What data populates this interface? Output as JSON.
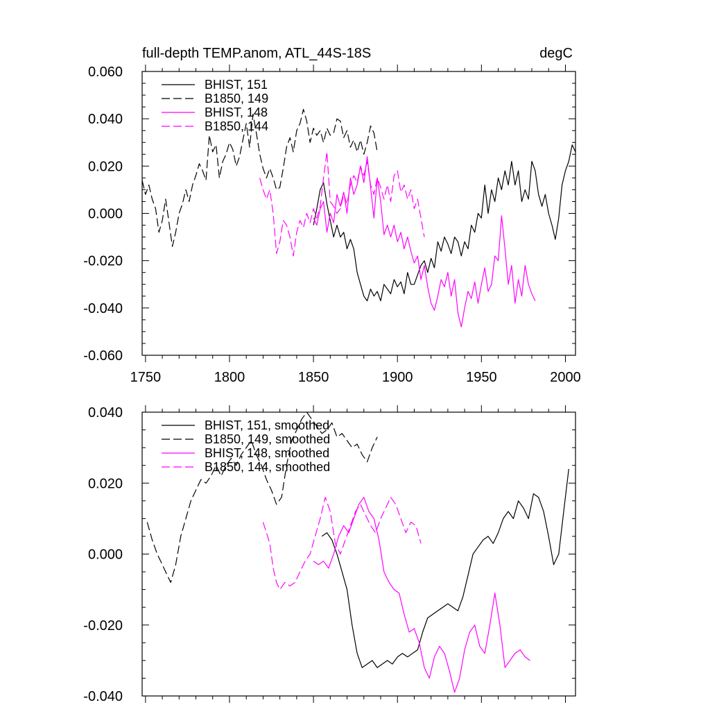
{
  "chart_data": [
    {
      "type": "line",
      "title": "full-depth TEMP.anom, ATL_44S-18S",
      "units": "degC",
      "xlim": [
        1748,
        2006
      ],
      "ylim": [
        -0.06,
        0.06
      ],
      "xticks": [
        1750,
        1800,
        1850,
        1900,
        1950,
        2000
      ],
      "yticks": [
        -0.06,
        -0.04,
        -0.02,
        0.0,
        0.02,
        0.04,
        0.06
      ],
      "xtick_labels": [
        "1750",
        "1800",
        "1850",
        "1900",
        "1950",
        "2000"
      ],
      "ytick_labels": [
        "-0.060",
        "-0.040",
        "-0.020",
        "0.000",
        "0.020",
        "0.040",
        "0.060"
      ],
      "legend_position": "top-left",
      "series": [
        {
          "name": "BHIST, 151",
          "color": "#000000",
          "dash": "solid",
          "x": [
            1850,
            1852,
            1854,
            1856,
            1858,
            1860,
            1862,
            1864,
            1866,
            1868,
            1870,
            1872,
            1874,
            1876,
            1878,
            1880,
            1882,
            1884,
            1886,
            1888,
            1890,
            1892,
            1894,
            1896,
            1898,
            1900,
            1902,
            1904,
            1906,
            1908,
            1910,
            1912,
            1914,
            1916,
            1918,
            1920,
            1922,
            1924,
            1926,
            1928,
            1930,
            1932,
            1934,
            1936,
            1938,
            1940,
            1942,
            1944,
            1946,
            1948,
            1950,
            1952,
            1954,
            1956,
            1958,
            1960,
            1962,
            1964,
            1966,
            1968,
            1970,
            1972,
            1974,
            1976,
            1978,
            1980,
            1982,
            1984,
            1986,
            1988,
            1990,
            1992,
            1994,
            1996,
            1998,
            2000,
            2002,
            2004,
            2006
          ],
          "values": [
            -0.005,
            0.002,
            0.01,
            0.013,
            0.004,
            -0.003,
            -0.01,
            -0.005,
            -0.01,
            -0.008,
            -0.015,
            -0.011,
            -0.015,
            -0.025,
            -0.03,
            -0.035,
            -0.037,
            -0.032,
            -0.035,
            -0.033,
            -0.037,
            -0.03,
            -0.032,
            -0.034,
            -0.028,
            -0.031,
            -0.029,
            -0.034,
            -0.025,
            -0.03,
            -0.03,
            -0.026,
            -0.022,
            -0.02,
            -0.025,
            -0.019,
            -0.023,
            -0.012,
            -0.016,
            -0.01,
            -0.013,
            -0.017,
            -0.01,
            -0.012,
            -0.018,
            -0.012,
            -0.015,
            -0.005,
            -0.008,
            0.0,
            -0.002,
            0.012,
            0.0,
            0.01,
            0.005,
            0.015,
            0.01,
            0.018,
            0.012,
            0.022,
            0.012,
            0.018,
            0.005,
            0.01,
            0.006,
            0.022,
            0.018,
            0.008,
            0.003,
            0.008,
            0.0,
            -0.005,
            -0.011,
            -0.002,
            0.012,
            0.018,
            0.022,
            0.029,
            0.026
          ]
        },
        {
          "name": "B1850, 149",
          "color": "#000000",
          "dash": "dashed",
          "x": [
            1748,
            1750,
            1752,
            1754,
            1756,
            1758,
            1760,
            1762,
            1764,
            1766,
            1768,
            1770,
            1772,
            1774,
            1776,
            1778,
            1780,
            1782,
            1784,
            1786,
            1788,
            1790,
            1792,
            1794,
            1796,
            1798,
            1800,
            1802,
            1804,
            1806,
            1808,
            1810,
            1812,
            1814,
            1816,
            1818,
            1820,
            1822,
            1824,
            1826,
            1828,
            1830,
            1832,
            1834,
            1836,
            1838,
            1840,
            1842,
            1844,
            1846,
            1848,
            1850,
            1852,
            1854,
            1856,
            1858,
            1860,
            1862,
            1864,
            1866,
            1868,
            1870,
            1872,
            1874,
            1876,
            1878,
            1880,
            1882,
            1884,
            1886,
            1888
          ],
          "values": [
            0.014,
            0.008,
            0.012,
            0.006,
            0.002,
            -0.008,
            -0.003,
            0.006,
            -0.004,
            -0.014,
            -0.008,
            0.0,
            0.004,
            0.01,
            0.005,
            0.012,
            0.016,
            0.021,
            0.018,
            0.014,
            0.033,
            0.026,
            0.029,
            0.015,
            0.022,
            0.025,
            0.03,
            0.027,
            0.02,
            0.024,
            0.031,
            0.038,
            0.028,
            0.042,
            0.034,
            0.025,
            0.019,
            0.015,
            0.019,
            0.015,
            0.01,
            0.011,
            0.019,
            0.028,
            0.032,
            0.026,
            0.035,
            0.038,
            0.044,
            0.039,
            0.03,
            0.036,
            0.033,
            0.035,
            0.03,
            0.036,
            0.033,
            0.034,
            0.04,
            0.039,
            0.032,
            0.035,
            0.028,
            0.031,
            0.026,
            0.031,
            0.025,
            0.03,
            0.037,
            0.034,
            0.026
          ]
        },
        {
          "name": "BHIST, 148",
          "color": "#ff00ff",
          "dash": "solid",
          "x": [
            1850,
            1852,
            1854,
            1856,
            1858,
            1860,
            1862,
            1864,
            1866,
            1868,
            1870,
            1872,
            1874,
            1876,
            1878,
            1880,
            1882,
            1884,
            1886,
            1888,
            1890,
            1892,
            1894,
            1896,
            1898,
            1900,
            1902,
            1904,
            1906,
            1908,
            1910,
            1912,
            1914,
            1916,
            1918,
            1920,
            1922,
            1924,
            1926,
            1928,
            1930,
            1932,
            1934,
            1936,
            1938,
            1940,
            1942,
            1944,
            1946,
            1948,
            1950,
            1952,
            1954,
            1956,
            1958,
            1960,
            1962,
            1964,
            1966,
            1968,
            1970,
            1972,
            1974,
            1976,
            1978,
            1980,
            1982
          ],
          "values": [
            -0.002,
            -0.005,
            0.002,
            0.005,
            -0.008,
            0.0,
            -0.004,
            0.008,
            0.003,
            0.009,
            0.0,
            0.015,
            0.008,
            0.012,
            0.02,
            0.013,
            0.024,
            0.011,
            -0.002,
            0.015,
            0.005,
            -0.009,
            -0.005,
            -0.01,
            -0.005,
            -0.012,
            -0.008,
            -0.015,
            -0.01,
            -0.016,
            -0.021,
            -0.018,
            -0.028,
            -0.022,
            -0.031,
            -0.038,
            -0.041,
            -0.035,
            -0.028,
            -0.031,
            -0.025,
            -0.035,
            -0.028,
            -0.042,
            -0.048,
            -0.04,
            -0.033,
            -0.036,
            -0.029,
            -0.038,
            -0.03,
            -0.023,
            -0.033,
            -0.03,
            -0.018,
            -0.02,
            -0.001,
            -0.015,
            -0.03,
            -0.022,
            -0.038,
            -0.028,
            -0.035,
            -0.022,
            -0.03,
            -0.034,
            -0.037
          ]
        },
        {
          "name": "B1850, 144",
          "color": "#ff00ff",
          "dash": "dashed",
          "x": [
            1818,
            1820,
            1822,
            1824,
            1826,
            1828,
            1830,
            1832,
            1834,
            1836,
            1838,
            1840,
            1842,
            1844,
            1846,
            1848,
            1850,
            1852,
            1854,
            1856,
            1858,
            1860,
            1862,
            1864,
            1866,
            1868,
            1870,
            1872,
            1874,
            1876,
            1878,
            1880,
            1882,
            1884,
            1886,
            1888,
            1890,
            1892,
            1894,
            1896,
            1898,
            1900,
            1902,
            1904,
            1906,
            1908,
            1910,
            1912,
            1914,
            1916
          ],
          "values": [
            0.015,
            0.01,
            0.006,
            0.01,
            0.0,
            -0.017,
            -0.012,
            -0.003,
            -0.005,
            -0.01,
            -0.018,
            -0.008,
            -0.003,
            -0.006,
            0.0,
            -0.004,
            0.002,
            -0.002,
            0.003,
            0.015,
            0.026,
            0.005,
            0.003,
            0.0,
            0.002,
            0.008,
            0.004,
            0.012,
            0.016,
            0.013,
            0.02,
            0.016,
            0.022,
            0.012,
            0.008,
            0.015,
            0.011,
            0.006,
            0.012,
            0.005,
            0.016,
            0.018,
            0.009,
            0.012,
            0.006,
            0.01,
            0.002,
            0.006,
            -0.002,
            -0.01
          ]
        }
      ]
    },
    {
      "type": "line",
      "xlim": [
        1748,
        2006
      ],
      "ylim": [
        -0.04,
        0.04
      ],
      "xticks": [
        1750,
        1800,
        1850,
        1900,
        1950,
        2000
      ],
      "yticks": [
        -0.04,
        -0.02,
        0.0,
        0.02,
        0.04
      ],
      "ytick_labels": [
        "-0.040",
        "-0.020",
        "0.000",
        "0.020",
        "0.040"
      ],
      "legend_position": "top-left",
      "series": [
        {
          "name": "BHIST, 151, smoothed",
          "color": "#000000",
          "dash": "solid",
          "x": [
            1855,
            1858,
            1861,
            1864,
            1867,
            1870,
            1873,
            1876,
            1879,
            1882,
            1885,
            1888,
            1891,
            1894,
            1897,
            1900,
            1903,
            1906,
            1909,
            1912,
            1915,
            1918,
            1921,
            1924,
            1927,
            1930,
            1933,
            1936,
            1939,
            1942,
            1945,
            1948,
            1951,
            1954,
            1957,
            1960,
            1963,
            1966,
            1969,
            1972,
            1975,
            1978,
            1981,
            1984,
            1987,
            1990,
            1993,
            1996,
            1999,
            2002
          ],
          "values": [
            0.005,
            0.006,
            0.004,
            0.0,
            -0.005,
            -0.01,
            -0.02,
            -0.028,
            -0.032,
            -0.031,
            -0.03,
            -0.032,
            -0.031,
            -0.03,
            -0.031,
            -0.029,
            -0.028,
            -0.029,
            -0.028,
            -0.027,
            -0.022,
            -0.018,
            -0.017,
            -0.016,
            -0.015,
            -0.014,
            -0.015,
            -0.016,
            -0.012,
            -0.006,
            0.0,
            0.002,
            0.004,
            0.005,
            0.003,
            0.006,
            0.01,
            0.012,
            0.01,
            0.015,
            0.013,
            0.01,
            0.017,
            0.016,
            0.012,
            0.005,
            -0.003,
            0.0,
            0.012,
            0.024
          ]
        },
        {
          "name": "B1850, 149, smoothed",
          "color": "#000000",
          "dash": "dashed",
          "x": [
            1751,
            1754,
            1757,
            1760,
            1763,
            1765,
            1768,
            1771,
            1774,
            1777,
            1780,
            1783,
            1786,
            1789,
            1792,
            1795,
            1798,
            1801,
            1804,
            1807,
            1810,
            1813,
            1816,
            1819,
            1822,
            1825,
            1828,
            1831,
            1834,
            1837,
            1840,
            1843,
            1846,
            1849,
            1852,
            1855,
            1858,
            1861,
            1864,
            1867,
            1870,
            1873,
            1876,
            1879,
            1882,
            1885,
            1888
          ],
          "values": [
            0.009,
            0.004,
            0.0,
            -0.003,
            -0.006,
            -0.008,
            -0.003,
            0.005,
            0.01,
            0.015,
            0.018,
            0.021,
            0.02,
            0.022,
            0.025,
            0.022,
            0.025,
            0.027,
            0.025,
            0.028,
            0.03,
            0.032,
            0.028,
            0.025,
            0.021,
            0.018,
            0.014,
            0.016,
            0.025,
            0.032,
            0.035,
            0.038,
            0.04,
            0.038,
            0.036,
            0.034,
            0.035,
            0.037,
            0.033,
            0.034,
            0.032,
            0.03,
            0.031,
            0.028,
            0.026,
            0.03,
            0.033
          ]
        },
        {
          "name": "BHIST, 148, smoothed",
          "color": "#ff00ff",
          "dash": "solid",
          "x": [
            1850,
            1853,
            1856,
            1859,
            1862,
            1865,
            1868,
            1871,
            1874,
            1877,
            1880,
            1883,
            1886,
            1889,
            1892,
            1895,
            1898,
            1901,
            1904,
            1907,
            1910,
            1913,
            1916,
            1919,
            1922,
            1925,
            1928,
            1931,
            1934,
            1937,
            1940,
            1943,
            1946,
            1949,
            1952,
            1955,
            1958,
            1961,
            1964,
            1967,
            1970,
            1973,
            1976,
            1979
          ],
          "values": [
            -0.002,
            -0.003,
            -0.002,
            -0.004,
            0.0,
            0.005,
            0.008,
            0.006,
            0.01,
            0.014,
            0.016,
            0.012,
            0.01,
            0.004,
            -0.005,
            -0.008,
            -0.01,
            -0.011,
            -0.017,
            -0.022,
            -0.021,
            -0.025,
            -0.032,
            -0.035,
            -0.029,
            -0.026,
            -0.028,
            -0.033,
            -0.039,
            -0.035,
            -0.027,
            -0.022,
            -0.02,
            -0.026,
            -0.028,
            -0.02,
            -0.011,
            -0.02,
            -0.032,
            -0.03,
            -0.028,
            -0.027,
            -0.029,
            -0.03
          ]
        },
        {
          "name": "B1850, 144, smoothed",
          "color": "#ff00ff",
          "dash": "dashed",
          "x": [
            1820,
            1822,
            1824,
            1826,
            1828,
            1830,
            1833,
            1836,
            1839,
            1842,
            1845,
            1848,
            1851,
            1854,
            1857,
            1860,
            1863,
            1866,
            1869,
            1872,
            1875,
            1878,
            1881,
            1884,
            1887,
            1890,
            1893,
            1896,
            1899,
            1902,
            1905,
            1908,
            1911,
            1914
          ],
          "values": [
            0.009,
            0.006,
            0.003,
            -0.004,
            -0.008,
            -0.01,
            -0.008,
            -0.009,
            -0.008,
            -0.005,
            -0.002,
            0.0,
            0.005,
            0.01,
            0.016,
            0.012,
            0.003,
            0.0,
            0.004,
            0.008,
            0.012,
            0.014,
            0.011,
            0.008,
            0.006,
            0.01,
            0.013,
            0.016,
            0.014,
            0.01,
            0.006,
            0.009,
            0.008,
            0.003
          ]
        }
      ]
    }
  ]
}
